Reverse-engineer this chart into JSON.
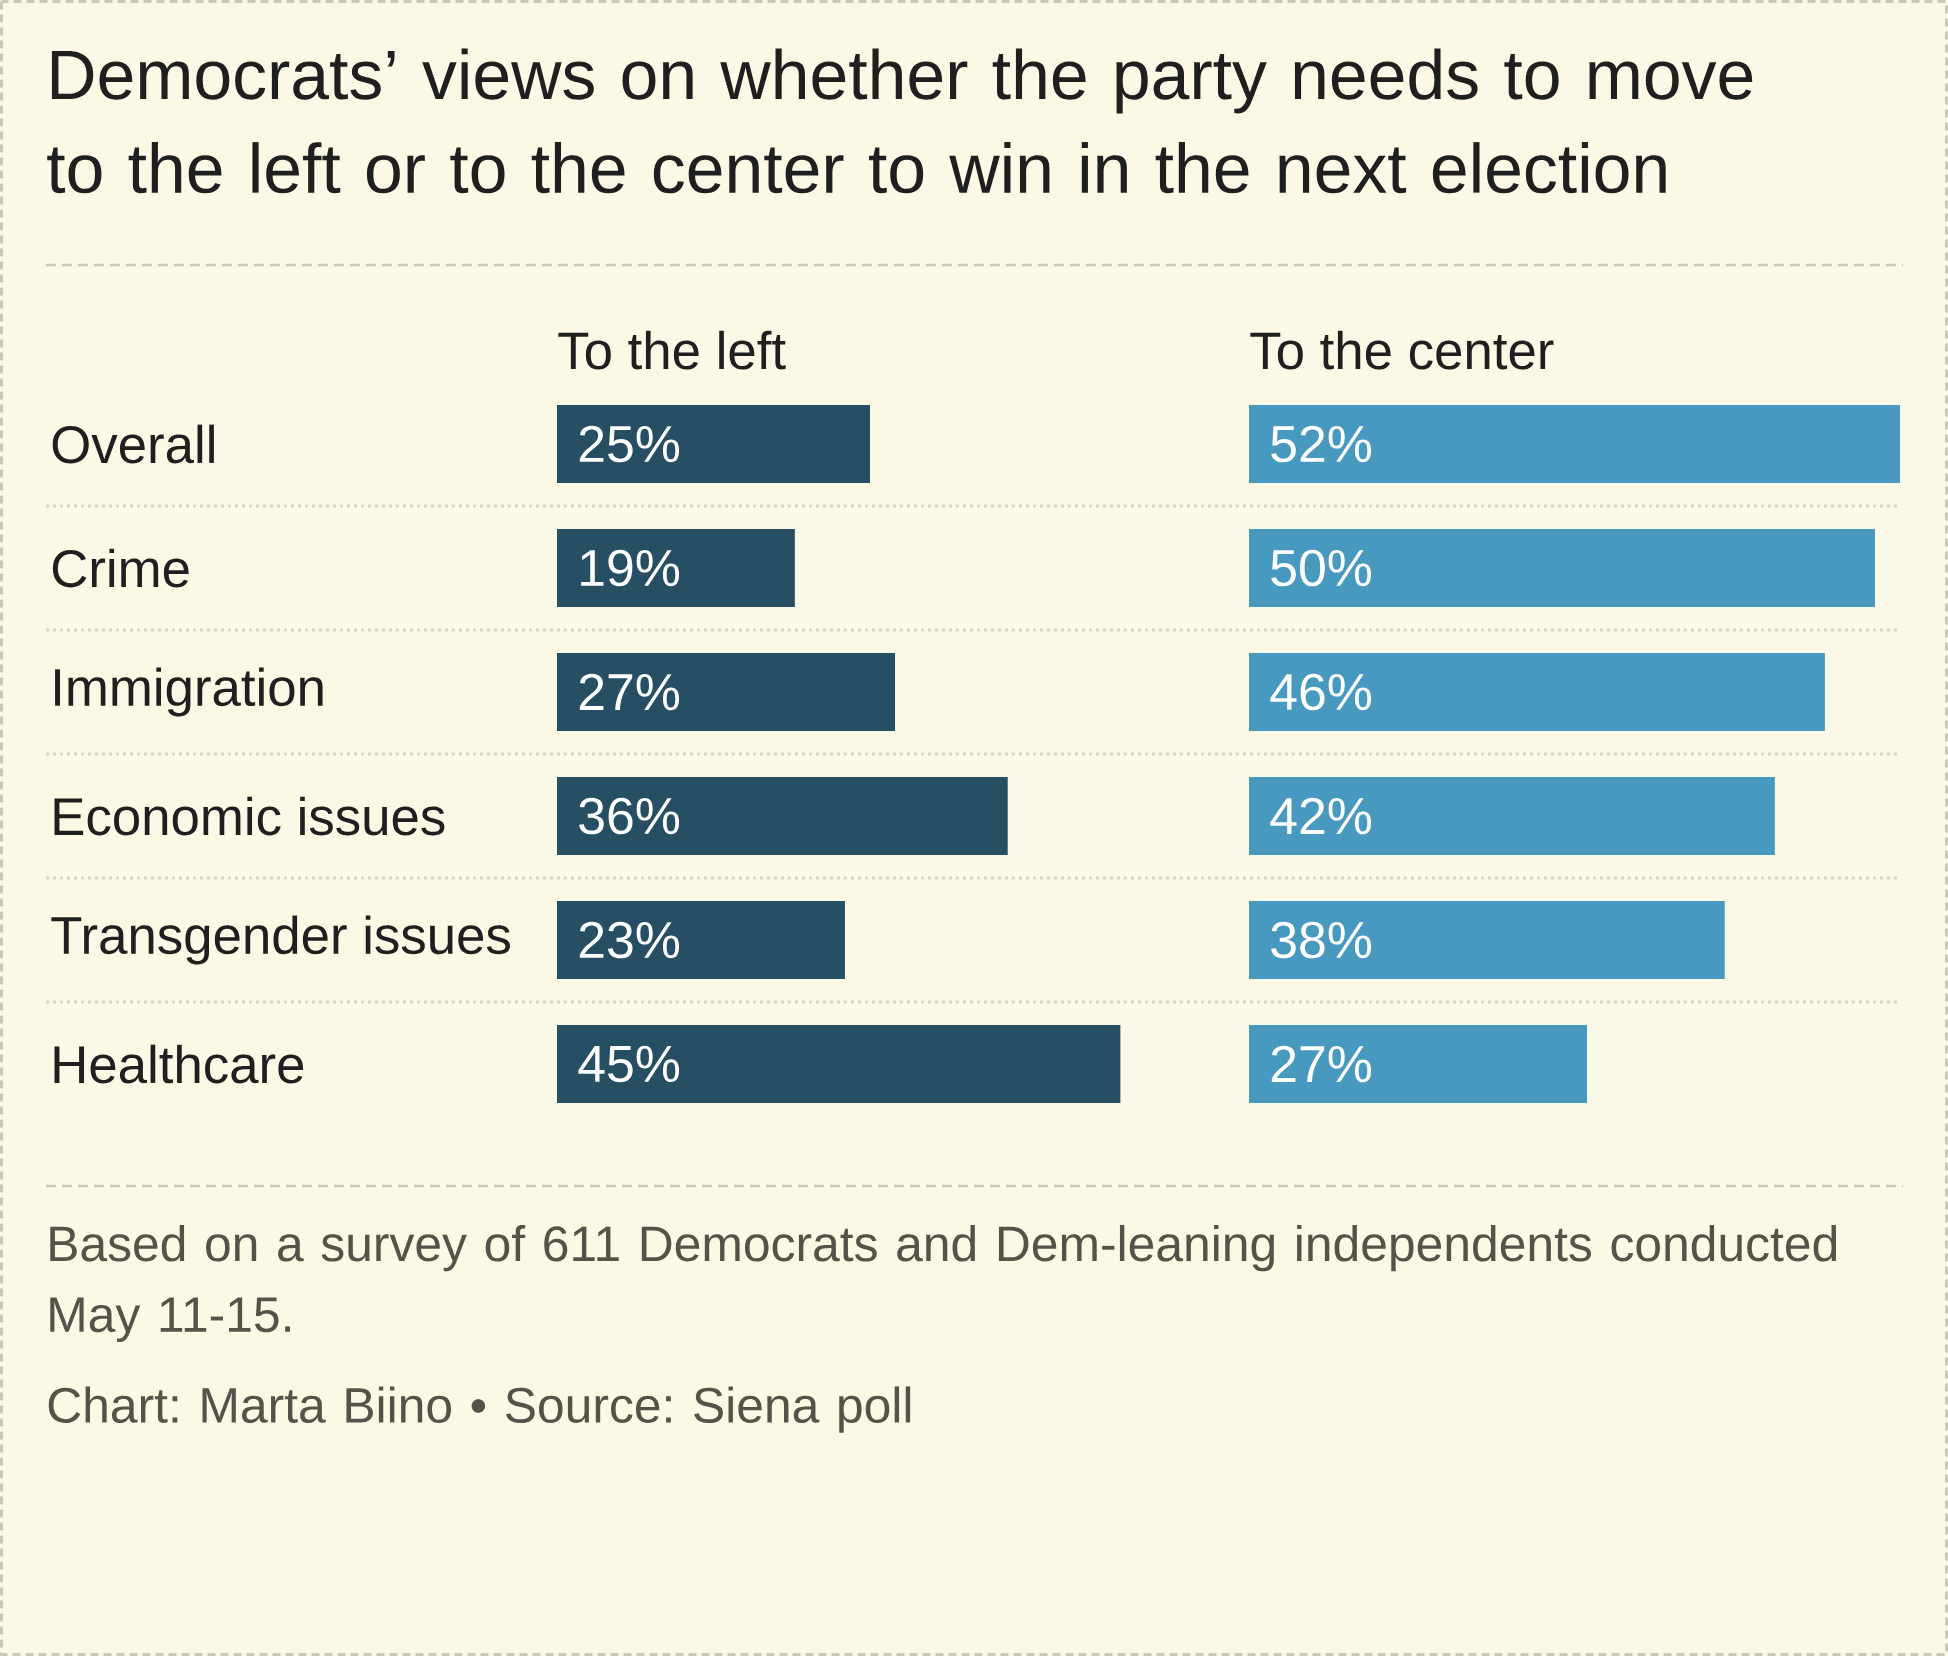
{
  "chart_data": [
    {
      "type": "bar",
      "orientation": "horizontal",
      "title": "Democrats’ views on whether the party needs to move to the left or to the center to win in the next election",
      "categories": [
        "Overall",
        "Crime",
        "Immigration",
        "Economic issues",
        "Transgender issues",
        "Healthcare"
      ],
      "series": [
        {
          "name": "To the left",
          "color": "#264f63",
          "values": [
            25,
            19,
            27,
            36,
            23,
            45
          ],
          "value_labels": [
            "25%",
            "19%",
            "27%",
            "36%",
            "23%",
            "45%"
          ]
        }
      ],
      "tick_labels": "y"
    },
    {
      "type": "bar",
      "orientation": "horizontal",
      "categories": [
        null,
        null,
        null,
        null,
        null,
        null
      ],
      "series": [
        {
          "name": "To the center",
          "color": "#4799bf",
          "values": [
            52,
            50,
            46,
            42,
            38,
            27
          ],
          "value_labels": [
            "52%",
            "50%",
            "46%",
            "42%",
            "38%",
            "27%"
          ]
        }
      ],
      "annotations": [
        "Based on a survey of 611 Democrats and Dem-leaning independents conducted May 11-15.",
        "Chart: Marta Biino • Source: Siena poll"
      ]
    }
  ]
}
